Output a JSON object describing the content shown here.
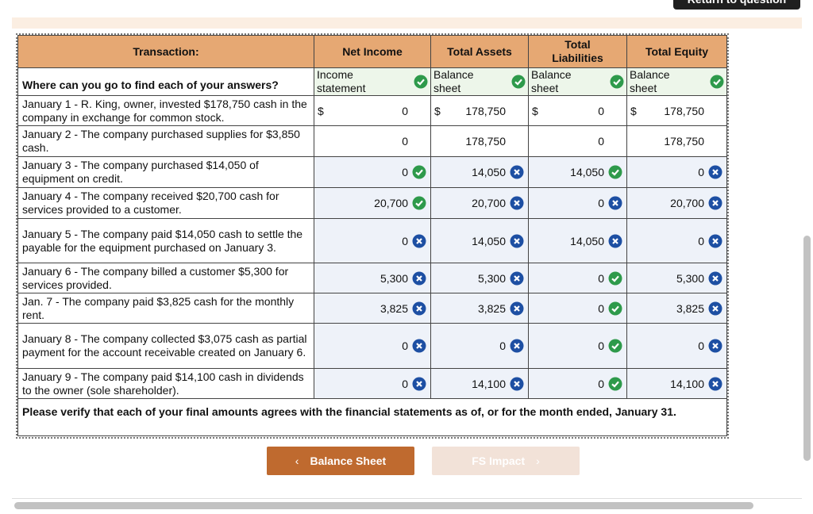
{
  "top_button": "Return to question",
  "table": {
    "headers": [
      "Transaction:",
      "Net Income",
      "Total Assets",
      "Total Liabilities",
      "Total Equity"
    ],
    "sources_label": "Where can you go to find each of your answers?",
    "sources": [
      {
        "text": "Income statement",
        "status": "correct"
      },
      {
        "text": "Balance sheet",
        "status": "correct"
      },
      {
        "text": "Balance sheet",
        "status": "correct"
      },
      {
        "text": "Balance sheet",
        "status": "correct"
      }
    ],
    "rows": [
      {
        "transaction": "January 1 - R. King, owner, invested $178,750 cash in the company in exchange for common stock.",
        "cells": [
          {
            "prefix": "$",
            "value": "0"
          },
          {
            "prefix": "$",
            "value": "178,750"
          },
          {
            "prefix": "$",
            "value": "0"
          },
          {
            "prefix": "$",
            "value": "178,750"
          }
        ]
      },
      {
        "transaction": "January 2 - The company purchased supplies for $3,850 cash.",
        "cells": [
          {
            "value": "0"
          },
          {
            "value": "178,750"
          },
          {
            "value": "0"
          },
          {
            "value": "178,750"
          }
        ]
      },
      {
        "transaction": "January 3 - The company purchased $14,050 of equipment on credit.",
        "cells": [
          {
            "value": "0",
            "status": "correct"
          },
          {
            "value": "14,050",
            "status": "incorrect"
          },
          {
            "value": "14,050",
            "status": "correct"
          },
          {
            "value": "0",
            "status": "incorrect"
          }
        ]
      },
      {
        "transaction": "January 4 - The company received $20,700 cash for services provided to a customer.",
        "cells": [
          {
            "value": "20,700",
            "status": "correct"
          },
          {
            "value": "20,700",
            "status": "incorrect"
          },
          {
            "value": "0",
            "status": "incorrect"
          },
          {
            "value": "20,700",
            "status": "incorrect"
          }
        ]
      },
      {
        "transaction": "January 5 - The company paid $14,050 cash to settle the payable for the equipment purchased on January 3.",
        "cells": [
          {
            "value": "0",
            "status": "incorrect"
          },
          {
            "value": "14,050",
            "status": "incorrect"
          },
          {
            "value": "14,050",
            "status": "incorrect"
          },
          {
            "value": "0",
            "status": "incorrect"
          }
        ]
      },
      {
        "transaction": "January 6 - The company billed a customer $5,300 for services provided.",
        "cells": [
          {
            "value": "5,300",
            "status": "incorrect"
          },
          {
            "value": "5,300",
            "status": "incorrect"
          },
          {
            "value": "0",
            "status": "correct"
          },
          {
            "value": "5,300",
            "status": "incorrect"
          }
        ]
      },
      {
        "transaction": "Jan. 7 - The company paid $3,825 cash for the monthly rent.",
        "cells": [
          {
            "value": "3,825",
            "status": "incorrect"
          },
          {
            "value": "3,825",
            "status": "incorrect"
          },
          {
            "value": "0",
            "status": "correct"
          },
          {
            "value": "3,825",
            "status": "incorrect"
          }
        ]
      },
      {
        "transaction": "January 8 - The company collected $3,075 cash as partial payment for the account receivable created on January 6.",
        "cells": [
          {
            "value": "0",
            "status": "incorrect"
          },
          {
            "value": "0",
            "status": "incorrect"
          },
          {
            "value": "0",
            "status": "correct"
          },
          {
            "value": "0",
            "status": "incorrect"
          }
        ]
      },
      {
        "transaction": "January 9 - The company paid $14,100 cash in dividends to the owner (sole shareholder).",
        "cells": [
          {
            "value": "0",
            "status": "incorrect"
          },
          {
            "value": "14,100",
            "status": "incorrect"
          },
          {
            "value": "0",
            "status": "correct"
          },
          {
            "value": "14,100",
            "status": "incorrect"
          }
        ]
      }
    ],
    "note": "Please verify that each of your final amounts agrees with the financial statements as of, or for the month ended, January 31."
  },
  "buttons": {
    "previous": "Balance Sheet",
    "next": "FS Impact"
  }
}
